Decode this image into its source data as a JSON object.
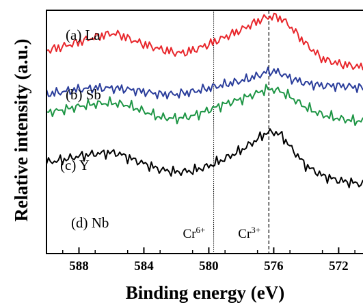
{
  "chart_data": {
    "type": "line",
    "title": "",
    "xlabel": "Binding energy (eV)",
    "ylabel": "Relative intensity (a.u.)",
    "x_reversed": true,
    "xlim": [
      590,
      570.5
    ],
    "ylim": [
      0,
      1
    ],
    "yticks_shown": false,
    "grid": false,
    "legend": "none (labels placed beside curves)",
    "xticks": [
      {
        "value": 588,
        "label": "588"
      },
      {
        "value": 584,
        "label": "584"
      },
      {
        "value": 580,
        "label": "580"
      },
      {
        "value": 576,
        "label": "576"
      },
      {
        "value": 572,
        "label": "572"
      }
    ],
    "reference_lines": [
      {
        "x": 579.7,
        "style": "dotted",
        "label": "Cr",
        "superscript": "6+"
      },
      {
        "x": 576.3,
        "style": "dashed",
        "label": "Cr",
        "superscript": "3+"
      }
    ],
    "series": [
      {
        "name": "(a) La",
        "color": "#e8262b",
        "x": [
          590,
          589,
          588,
          587,
          586,
          585.5,
          585,
          584,
          583,
          582,
          581.5,
          581,
          580,
          579,
          578,
          577,
          576.5,
          576,
          575.5,
          575,
          574,
          573,
          572,
          571,
          570.5
        ],
        "y": [
          0.835,
          0.85,
          0.87,
          0.89,
          0.905,
          0.9,
          0.885,
          0.86,
          0.84,
          0.825,
          0.825,
          0.835,
          0.86,
          0.89,
          0.92,
          0.955,
          0.97,
          0.975,
          0.965,
          0.935,
          0.86,
          0.8,
          0.78,
          0.77,
          0.765
        ]
      },
      {
        "name": "(b) Sb",
        "color": "#2a3d9b",
        "x": [
          590,
          589,
          588,
          587,
          586,
          585,
          584,
          583,
          582,
          581,
          580,
          579,
          578,
          577,
          576.5,
          576,
          575.5,
          575,
          574,
          573,
          572,
          571,
          570.5
        ],
        "y": [
          0.655,
          0.665,
          0.675,
          0.68,
          0.68,
          0.675,
          0.665,
          0.655,
          0.655,
          0.665,
          0.68,
          0.695,
          0.71,
          0.73,
          0.745,
          0.75,
          0.74,
          0.72,
          0.7,
          0.69,
          0.69,
          0.685,
          0.68
        ]
      },
      {
        "name": "(c) Y",
        "color": "#1d9544",
        "x": [
          590,
          589,
          588,
          587,
          586,
          585,
          584,
          583,
          582,
          581,
          580,
          579,
          578,
          577,
          576.5,
          576,
          575.5,
          575,
          574,
          573,
          572,
          571,
          570.5
        ],
        "y": [
          0.58,
          0.59,
          0.605,
          0.615,
          0.62,
          0.61,
          0.585,
          0.56,
          0.555,
          0.565,
          0.59,
          0.615,
          0.635,
          0.66,
          0.675,
          0.675,
          0.665,
          0.645,
          0.6,
          0.57,
          0.555,
          0.545,
          0.545
        ]
      },
      {
        "name": "(d) Nb",
        "color": "#000000",
        "x": [
          590,
          589,
          588,
          587,
          586,
          585.5,
          585,
          584,
          583,
          582,
          581,
          580,
          579,
          578,
          577,
          576.5,
          576,
          575.5,
          575,
          574,
          573,
          572,
          571,
          570.5
        ],
        "y": [
          0.375,
          0.385,
          0.4,
          0.41,
          0.415,
          0.41,
          0.395,
          0.37,
          0.345,
          0.335,
          0.34,
          0.36,
          0.39,
          0.425,
          0.47,
          0.495,
          0.5,
          0.485,
          0.44,
          0.36,
          0.32,
          0.3,
          0.29,
          0.285
        ]
      }
    ]
  }
}
